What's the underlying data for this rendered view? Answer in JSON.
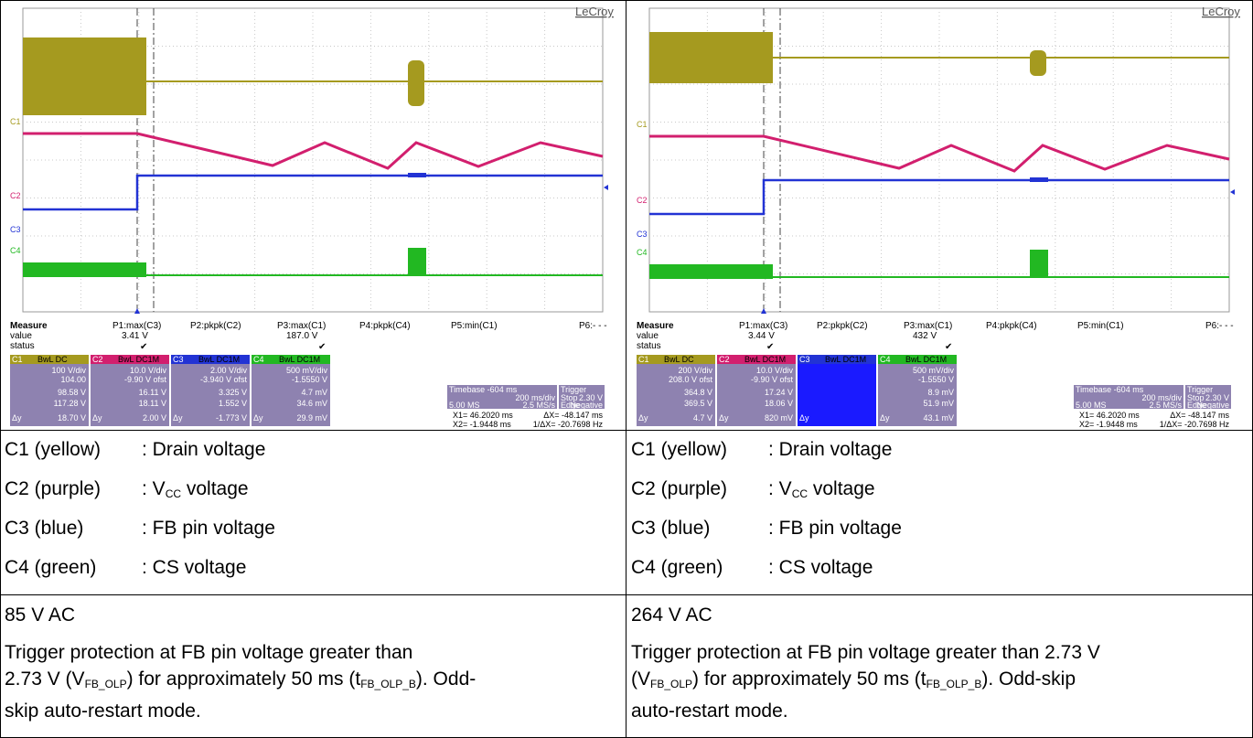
{
  "panels": [
    {
      "brand": "LeCroy",
      "measure": {
        "label": "Measure",
        "value_label": "value",
        "status_label": "status",
        "headers": [
          "P1:max(C3)",
          "P2:pkpk(C2)",
          "P3:max(C1)",
          "P4:pkpk(C4)",
          "P5:min(C1)",
          "P6:- - -"
        ],
        "values": [
          "3.41 V",
          "",
          "187.0 V",
          "",
          "",
          ""
        ]
      },
      "channels": [
        {
          "name": "C1",
          "mode": "BwL DC",
          "vdiv": "100 V/div",
          "ofst": "104.00",
          "v1": "98.58 V",
          "v2": "117.28 V",
          "dy": "18.70 V",
          "color": "#a59a1f"
        },
        {
          "name": "C2",
          "mode": "BwL DC1M",
          "vdiv": "10.0 V/div",
          "ofst": "-9.90 V ofst",
          "v1": "16.11 V",
          "v2": "18.11 V",
          "dy": "2.00 V",
          "color": "#d21f6e"
        },
        {
          "name": "C3",
          "mode": "BwL DC1M",
          "vdiv": "2.00 V/div",
          "ofst": "-3.940 V ofst",
          "v1": "3.325 V",
          "v2": "1.552 V",
          "dy": "-1.773 V",
          "color": "#2233d4"
        },
        {
          "name": "C4",
          "mode": "BwL DC1M",
          "vdiv": "500 mV/div",
          "ofst": "-1.5550 V",
          "v1": "4.7 mV",
          "v2": "34.6 mV",
          "dy": "29.9 mV",
          "color": "#22b822"
        }
      ],
      "timebase": {
        "tb": "Timebase -604 ms",
        "trig": "Trigger",
        "tdiv": "200 ms/div",
        "stop": "Stop",
        "stopv": "2.30 V",
        "ms": "5.00 MS",
        "rate": "2.5 MS/s",
        "edge": "Edge",
        "neg": "Negative",
        "x1": "X1= 46.2020 ms",
        "dx": "ΔX= -48.147 ms",
        "x2": "X2= -1.9448 ms",
        "idx": "1/ΔX= -20.7698 Hz"
      },
      "legend": [
        {
          "name": "C1 (yellow)",
          "desc": ": Drain voltage"
        },
        {
          "name": "C2 (purple)",
          "desc_pre": ": V",
          "desc_sub": "CC",
          "desc_post": " voltage"
        },
        {
          "name": "C3 (blue)",
          "desc": ": FB pin voltage"
        },
        {
          "name": "C4 (green)",
          "desc": ": CS voltage"
        }
      ],
      "vac": "85 V AC",
      "para": {
        "l1": "Trigger protection at FB pin voltage greater than",
        "l2a": "2.73 V (V",
        "l2s": "FB_OLP",
        "l2b": ") for approximately 50 ms (t",
        "l2s2": "FB_OLP_B",
        "l2c": "). Odd-",
        "l3": "skip auto-restart mode."
      }
    },
    {
      "brand": "LeCroy",
      "measure": {
        "label": "Measure",
        "value_label": "value",
        "status_label": "status",
        "headers": [
          "P1:max(C3)",
          "P2:pkpk(C2)",
          "P3:max(C1)",
          "P4:pkpk(C4)",
          "P5:min(C1)",
          "P6:- - -"
        ],
        "values": [
          "3.44 V",
          "",
          "432 V",
          "",
          "",
          ""
        ]
      },
      "channels": [
        {
          "name": "C1",
          "mode": "BwL DC",
          "vdiv": "200 V/div",
          "ofst": "208.0 V ofst",
          "v1": "364.8 V",
          "v2": "369.5 V",
          "dy": "4.7 V",
          "color": "#a59a1f"
        },
        {
          "name": "C2",
          "mode": "BwL DC1M",
          "vdiv": "10.0 V/div",
          "ofst": "-9.90 V ofst",
          "v1": "17.24 V",
          "v2": "18.06 V",
          "dy": "820 mV",
          "color": "#d21f6e"
        },
        {
          "name": "C3",
          "mode": "BwL DC1M",
          "vdiv": "",
          "ofst": "",
          "v1": "",
          "v2": "",
          "dy": "",
          "color": "#2233d4"
        },
        {
          "name": "C4",
          "mode": "BwL DC1M",
          "vdiv": "500 mV/div",
          "ofst": "-1.5550 V",
          "v1": "8.9 mV",
          "v2": "51.9 mV",
          "dy": "43.1 mV",
          "color": "#22b822"
        }
      ],
      "timebase": {
        "tb": "Timebase -604 ms",
        "trig": "Trigger",
        "tdiv": "200 ms/div",
        "stop": "Stop",
        "stopv": "2.30 V",
        "ms": "5.00 MS",
        "rate": "2.5 MS/s",
        "edge": "Edge",
        "neg": "Negative",
        "x1": "X1= 46.2020 ms",
        "dx": "ΔX= -48.147 ms",
        "x2": "X2= -1.9448 ms",
        "idx": "1/ΔX= -20.7698 Hz"
      },
      "legend": [
        {
          "name": "C1 (yellow)",
          "desc": ": Drain voltage"
        },
        {
          "name": "C2 (purple)",
          "desc_pre": ": V",
          "desc_sub": "CC",
          "desc_post": " voltage"
        },
        {
          "name": "C3 (blue)",
          "desc": ": FB pin voltage"
        },
        {
          "name": "C4 (green)",
          "desc": ": CS voltage"
        }
      ],
      "vac": "264 V AC",
      "para": {
        "l1": "Trigger protection at FB pin voltage greater than 2.73 V",
        "l2a": "(V",
        "l2s": "FB_OLP",
        "l2b": ") for approximately 50 ms (t",
        "l2s2": "FB_OLP_B",
        "l2c": "). Odd-skip",
        "l3": "auto-restart mode."
      }
    }
  ]
}
